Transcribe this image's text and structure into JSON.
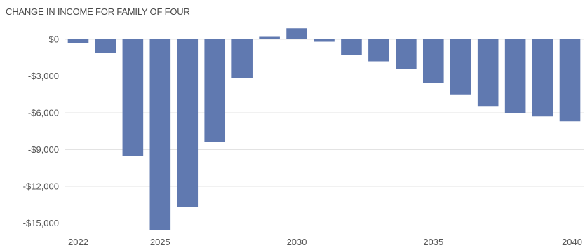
{
  "chart_data": {
    "type": "bar",
    "title": "CHANGE IN INCOME FOR FAMILY OF FOUR",
    "xlabel": "",
    "ylabel": "",
    "categories": [
      "2022",
      "2023",
      "2024",
      "2025",
      "2026",
      "2027",
      "2028",
      "2029",
      "2030",
      "2031",
      "2032",
      "2033",
      "2034",
      "2035",
      "2036",
      "2037",
      "2038",
      "2039",
      "2040"
    ],
    "values": [
      -300,
      -1100,
      -9500,
      -15600,
      -13700,
      -8400,
      -3200,
      200,
      900,
      -200,
      -1300,
      -1800,
      -2400,
      -3600,
      -4500,
      -5500,
      -6000,
      -6300,
      -6700
    ],
    "ylim": [
      -15750,
      900
    ],
    "yticks": [
      0,
      -3000,
      -6000,
      -9000,
      -12000,
      -15000
    ],
    "ytick_labels": [
      "$0",
      "-$3,000",
      "-$6,000",
      "-$9,000",
      "-$12,000",
      "-$15,000"
    ],
    "xtick_labels": [
      "2022",
      "2025",
      "2030",
      "2035",
      "2040"
    ],
    "grid": true,
    "bar_color": "#6079b0"
  }
}
